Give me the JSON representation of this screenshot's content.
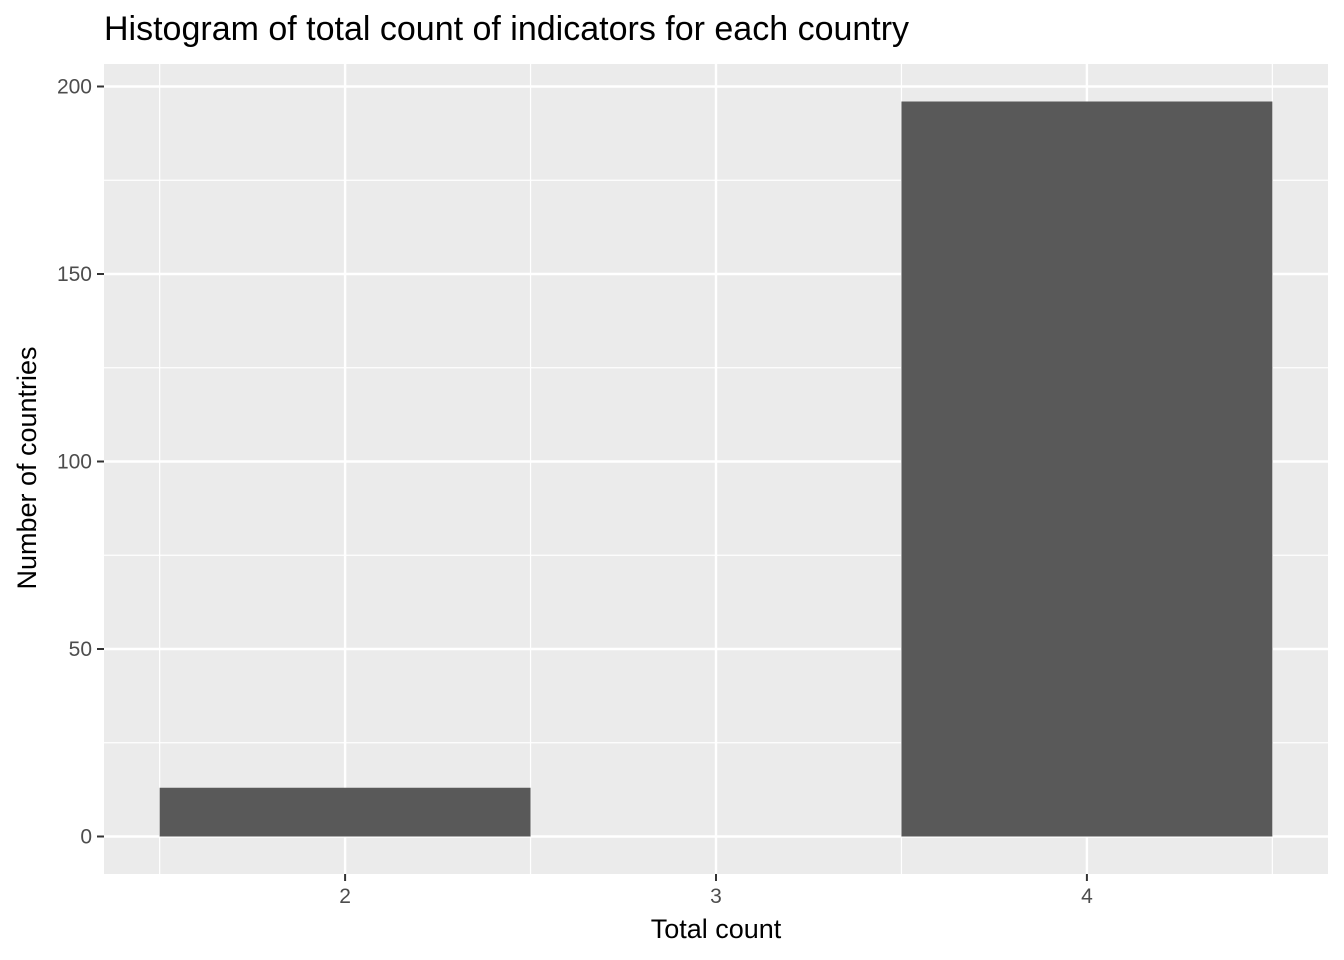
{
  "chart_data": {
    "type": "bar",
    "title": "Histogram of total count of indicators for each country",
    "xlabel": "Total count",
    "ylabel": "Number of countries",
    "bins": [
      {
        "x_min": 1.5,
        "x_max": 2.5,
        "count": 13
      },
      {
        "x_min": 2.5,
        "x_max": 3.5,
        "count": 0
      },
      {
        "x_min": 3.5,
        "x_max": 4.5,
        "count": 196
      }
    ],
    "x_ticks": [
      2,
      3,
      4
    ],
    "y_ticks": [
      0,
      50,
      100,
      150,
      200
    ],
    "xlim": [
      1.35,
      4.65
    ],
    "ylim": [
      -10,
      206
    ],
    "grid": true,
    "legend": "none",
    "colors": {
      "panel_background": "#ebebeb",
      "grid_major": "#ffffff",
      "bar_fill": "#595959",
      "tick_mark": "#333333"
    }
  }
}
